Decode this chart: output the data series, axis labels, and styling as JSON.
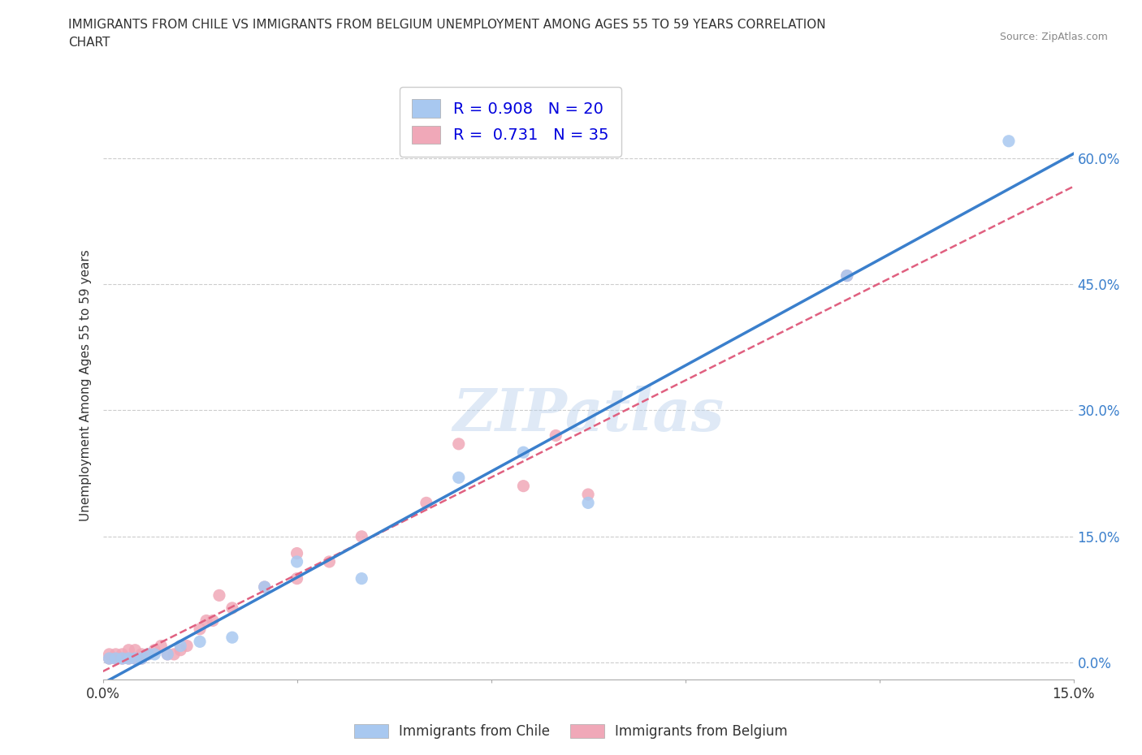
{
  "title_line1": "IMMIGRANTS FROM CHILE VS IMMIGRANTS FROM BELGIUM UNEMPLOYMENT AMONG AGES 55 TO 59 YEARS CORRELATION",
  "title_line2": "CHART",
  "source": "Source: ZipAtlas.com",
  "ylabel": "Unemployment Among Ages 55 to 59 years",
  "xlim": [
    0.0,
    0.15
  ],
  "ylim": [
    -0.02,
    0.68
  ],
  "xticks": [
    0.0,
    0.03,
    0.06,
    0.09,
    0.12,
    0.15
  ],
  "xticklabels_show": [
    "0.0%",
    "",
    "",
    "",
    "",
    "15.0%"
  ],
  "yticks": [
    0.0,
    0.15,
    0.3,
    0.45,
    0.6
  ],
  "yticklabels": [
    "0.0%",
    "15.0%",
    "30.0%",
    "45.0%",
    "60.0%"
  ],
  "chile_color": "#a8c8f0",
  "belgium_color": "#f0a8b8",
  "chile_line_color": "#3a7fcc",
  "belgium_line_color": "#e06080",
  "chile_R": 0.908,
  "chile_N": 20,
  "belgium_R": 0.731,
  "belgium_N": 35,
  "watermark": "ZIPatlas",
  "background_color": "#ffffff",
  "grid_color": "#cccccc",
  "chile_scatter_x": [
    0.001,
    0.002,
    0.003,
    0.004,
    0.005,
    0.006,
    0.007,
    0.008,
    0.01,
    0.012,
    0.015,
    0.02,
    0.025,
    0.03,
    0.04,
    0.055,
    0.065,
    0.075,
    0.115,
    0.14
  ],
  "chile_scatter_y": [
    0.005,
    0.005,
    0.005,
    0.005,
    0.005,
    0.005,
    0.01,
    0.01,
    0.01,
    0.02,
    0.025,
    0.03,
    0.09,
    0.12,
    0.1,
    0.22,
    0.25,
    0.19,
    0.46,
    0.62
  ],
  "belgium_scatter_x": [
    0.001,
    0.001,
    0.002,
    0.002,
    0.003,
    0.003,
    0.004,
    0.004,
    0.005,
    0.005,
    0.006,
    0.006,
    0.007,
    0.008,
    0.009,
    0.01,
    0.011,
    0.012,
    0.013,
    0.015,
    0.016,
    0.017,
    0.018,
    0.02,
    0.025,
    0.03,
    0.03,
    0.035,
    0.04,
    0.05,
    0.055,
    0.065,
    0.07,
    0.075,
    0.115
  ],
  "belgium_scatter_y": [
    0.005,
    0.01,
    0.005,
    0.01,
    0.005,
    0.01,
    0.005,
    0.015,
    0.005,
    0.015,
    0.005,
    0.01,
    0.01,
    0.015,
    0.02,
    0.01,
    0.01,
    0.015,
    0.02,
    0.04,
    0.05,
    0.05,
    0.08,
    0.065,
    0.09,
    0.1,
    0.13,
    0.12,
    0.15,
    0.19,
    0.26,
    0.21,
    0.27,
    0.2,
    0.46
  ]
}
